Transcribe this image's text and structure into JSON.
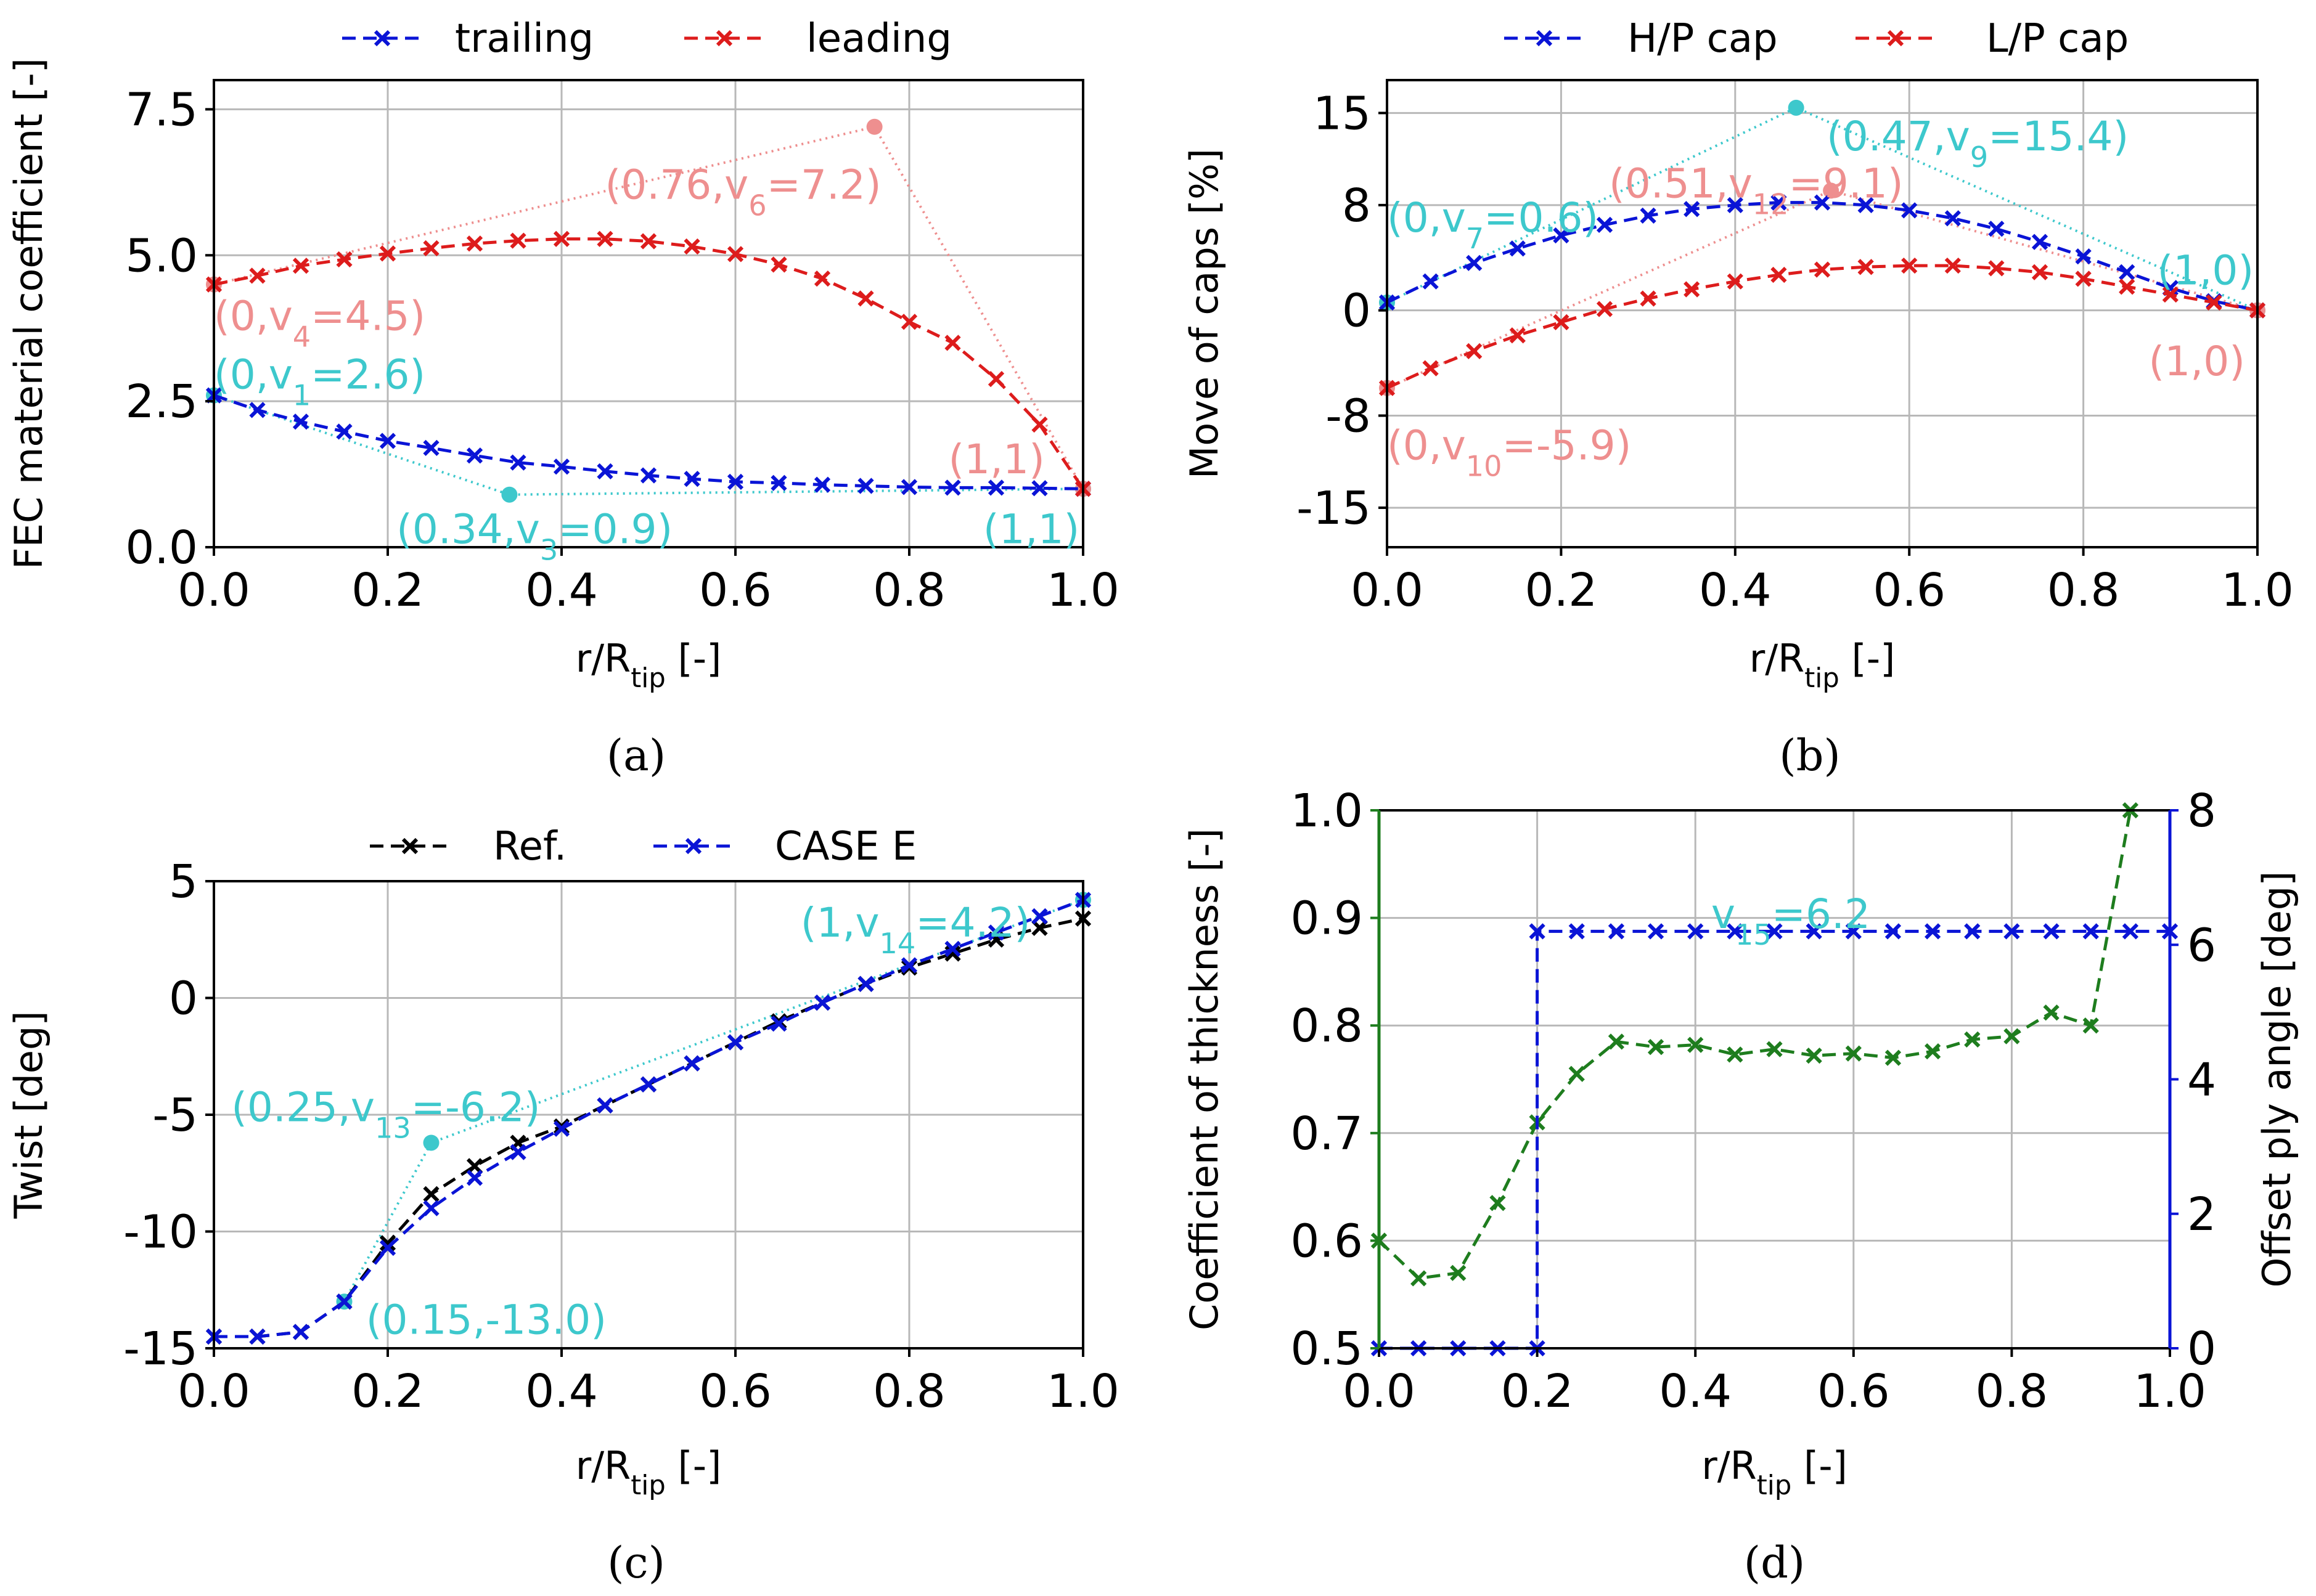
{
  "colors": {
    "blue": "#0a14d6",
    "red": "#dd1c1c",
    "cyan": "#3dc8cc",
    "pink": "#ee8f8f",
    "black": "#000000",
    "green": "#1e7d1e"
  },
  "chart_data": [
    {
      "panel": "(a)",
      "type": "line",
      "xlabel": "r/R",
      "xlabel_sub": "tip",
      "xlabel_unit": " [-]",
      "ylabel": "FEC material coefficient [-]",
      "xlim": [
        0,
        1
      ],
      "ylim": [
        0,
        8
      ],
      "xticks": [
        0.0,
        0.2,
        0.4,
        0.6,
        0.8,
        1.0
      ],
      "xtick_labels": [
        "0.0",
        "0.2",
        "0.4",
        "0.6",
        "0.8",
        "1.0"
      ],
      "yticks": [
        0.0,
        2.5,
        5.0,
        7.5
      ],
      "ytick_labels": [
        "0.0",
        "2.5",
        "5.0",
        "7.5"
      ],
      "legend": "top",
      "series": [
        {
          "name": "trailing",
          "color": "blue",
          "x": [
            0,
            0.05,
            0.1,
            0.15,
            0.2,
            0.25,
            0.3,
            0.35,
            0.4,
            0.45,
            0.5,
            0.55,
            0.6,
            0.65,
            0.7,
            0.75,
            0.8,
            0.85,
            0.9,
            0.95,
            1.0
          ],
          "y": [
            2.6,
            2.35,
            2.15,
            1.98,
            1.82,
            1.7,
            1.57,
            1.45,
            1.38,
            1.3,
            1.23,
            1.17,
            1.12,
            1.1,
            1.07,
            1.05,
            1.03,
            1.02,
            1.02,
            1.01,
            1.0
          ]
        },
        {
          "name": "leading",
          "color": "red",
          "x": [
            0,
            0.05,
            0.1,
            0.15,
            0.2,
            0.25,
            0.3,
            0.35,
            0.4,
            0.45,
            0.5,
            0.55,
            0.6,
            0.65,
            0.7,
            0.75,
            0.8,
            0.85,
            0.9,
            0.95,
            1.0
          ],
          "y": [
            4.5,
            4.65,
            4.82,
            4.93,
            5.03,
            5.12,
            5.2,
            5.25,
            5.28,
            5.28,
            5.24,
            5.15,
            5.02,
            4.84,
            4.6,
            4.26,
            3.86,
            3.5,
            2.88,
            2.1,
            1.0
          ]
        }
      ],
      "control_polygons": [
        {
          "color": "cyan",
          "points": [
            [
              0,
              2.6
            ],
            [
              0.34,
              0.9
            ],
            [
              1,
              1
            ]
          ]
        },
        {
          "color": "pink",
          "points": [
            [
              0,
              4.5
            ],
            [
              0.76,
              7.2
            ],
            [
              1,
              1
            ]
          ]
        }
      ],
      "annotations": [
        {
          "text": "(0.76,v6=7.2)",
          "lead": "(0.76,v",
          "sub": "6",
          "tail": "=7.2)",
          "color": "pink",
          "x": 0.45,
          "y": 6.2
        },
        {
          "text": "(0,v4=4.5)",
          "lead": "(0,v",
          "sub": "4",
          "tail": "=4.5)",
          "color": "pink",
          "x": 0.0,
          "y": 3.95
        },
        {
          "text": "(0,v1=2.6)",
          "lead": "(0,v",
          "sub": "1",
          "tail": "=2.6)",
          "color": "cyan",
          "x": 0.0,
          "y": 2.95
        },
        {
          "text": "(1,1)",
          "lead": "(1,1)",
          "sub": "",
          "tail": "",
          "color": "pink",
          "x": 0.845,
          "y": 1.5
        },
        {
          "text": "(0.34,v3=0.9)",
          "lead": "(0.34,v",
          "sub": "3",
          "tail": "=0.9)",
          "color": "cyan",
          "x": 0.21,
          "y": 0.3
        },
        {
          "text": "(1,1)",
          "lead": "(1,1)",
          "sub": "",
          "tail": "",
          "color": "cyan",
          "x": 0.885,
          "y": 0.3
        }
      ]
    },
    {
      "panel": "(b)",
      "type": "line",
      "xlabel": "r/R",
      "xlabel_sub": "tip",
      "xlabel_unit": " [-]",
      "ylabel": "Move of caps [%]",
      "xlim": [
        0,
        1
      ],
      "ylim": [
        -18,
        17.5
      ],
      "xticks": [
        0.0,
        0.2,
        0.4,
        0.6,
        0.8,
        1.0
      ],
      "xtick_labels": [
        "0.0",
        "0.2",
        "0.4",
        "0.6",
        "0.8",
        "1.0"
      ],
      "yticks": [
        15,
        8,
        0,
        -8,
        -15
      ],
      "ytick_labels": [
        "15",
        "8",
        "0",
        "-8",
        "-15"
      ],
      "legend": "top",
      "series": [
        {
          "name": "H/P cap",
          "color": "blue",
          "x": [
            0,
            0.05,
            0.1,
            0.15,
            0.2,
            0.25,
            0.3,
            0.35,
            0.4,
            0.45,
            0.5,
            0.55,
            0.6,
            0.65,
            0.7,
            0.75,
            0.8,
            0.85,
            0.9,
            0.95,
            1.0
          ],
          "y": [
            0.6,
            2.2,
            3.6,
            4.7,
            5.7,
            6.5,
            7.2,
            7.7,
            8.0,
            8.2,
            8.2,
            8.0,
            7.6,
            7.0,
            6.2,
            5.2,
            4.1,
            2.9,
            1.7,
            0.7,
            0.0
          ]
        },
        {
          "name": "L/P cap",
          "color": "red",
          "x": [
            0,
            0.05,
            0.1,
            0.15,
            0.2,
            0.25,
            0.3,
            0.35,
            0.4,
            0.45,
            0.5,
            0.55,
            0.6,
            0.65,
            0.7,
            0.75,
            0.8,
            0.85,
            0.9,
            0.95,
            1.0
          ],
          "y": [
            -5.9,
            -4.4,
            -3.1,
            -1.9,
            -0.9,
            0.1,
            0.9,
            1.6,
            2.2,
            2.7,
            3.1,
            3.3,
            3.4,
            3.4,
            3.2,
            2.9,
            2.4,
            1.8,
            1.2,
            0.6,
            0.0
          ]
        }
      ],
      "control_polygons": [
        {
          "color": "cyan",
          "points": [
            [
              0,
              0.6
            ],
            [
              0.47,
              15.4
            ],
            [
              1,
              0
            ]
          ]
        },
        {
          "color": "pink",
          "points": [
            [
              0,
              -5.9
            ],
            [
              0.51,
              9.1
            ],
            [
              1,
              0
            ]
          ]
        }
      ],
      "annotations": [
        {
          "text": "(0.47,v9=15.4)",
          "lead": "(0.47,v",
          "sub": "9",
          "tail": "=15.4)",
          "color": "cyan",
          "x": 0.505,
          "y": 13.2
        },
        {
          "text": "(0.51,v12=9.1)",
          "lead": "(0.51,v",
          "sub": "12",
          "tail": "=9.1)",
          "color": "pink",
          "x": 0.255,
          "y": 9.6
        },
        {
          "text": "(0,v7=0.6)",
          "lead": "(0,v",
          "sub": "7",
          "tail": "=0.6)",
          "color": "cyan",
          "x": 0.0,
          "y": 7.0
        },
        {
          "text": "(1,0)",
          "lead": "(1,0)",
          "sub": "",
          "tail": "",
          "color": "cyan",
          "x": 0.885,
          "y": 3.0
        },
        {
          "text": "(1,0)",
          "lead": "(1,0)",
          "sub": "",
          "tail": "",
          "color": "pink",
          "x": 0.875,
          "y": -3.9
        },
        {
          "text": "(0,v10=-5.9)",
          "lead": "(0,v",
          "sub": "10",
          "tail": "=-5.9)",
          "color": "pink",
          "x": 0.0,
          "y": -10.3
        }
      ]
    },
    {
      "panel": "(c)",
      "type": "line",
      "xlabel": "r/R",
      "xlabel_sub": "tip",
      "xlabel_unit": " [-]",
      "ylabel": "Twist [deg]",
      "xlim": [
        0,
        1
      ],
      "ylim": [
        -15,
        5
      ],
      "xticks": [
        0.0,
        0.2,
        0.4,
        0.6,
        0.8,
        1.0
      ],
      "xtick_labels": [
        "0.0",
        "0.2",
        "0.4",
        "0.6",
        "0.8",
        "1.0"
      ],
      "yticks": [
        5,
        0,
        -5,
        -10,
        -15
      ],
      "ytick_labels": [
        "5",
        "0",
        "-5",
        "-10",
        "-15"
      ],
      "legend": "top",
      "series": [
        {
          "name": "Ref.",
          "color": "black",
          "x": [
            0,
            0.05,
            0.1,
            0.15,
            0.2,
            0.25,
            0.3,
            0.35,
            0.4,
            0.45,
            0.5,
            0.55,
            0.6,
            0.65,
            0.7,
            0.75,
            0.8,
            0.85,
            0.9,
            0.95,
            1.0
          ],
          "y": [
            -14.5,
            -14.5,
            -14.3,
            -13.0,
            -10.5,
            -8.4,
            -7.2,
            -6.2,
            -5.5,
            -4.6,
            -3.7,
            -2.8,
            -1.9,
            -1.0,
            -0.2,
            0.6,
            1.3,
            1.9,
            2.5,
            3.0,
            3.4
          ]
        },
        {
          "name": "CASE E",
          "color": "blue",
          "x": [
            0,
            0.05,
            0.1,
            0.15,
            0.2,
            0.25,
            0.3,
            0.35,
            0.4,
            0.45,
            0.5,
            0.55,
            0.6,
            0.65,
            0.7,
            0.75,
            0.8,
            0.85,
            0.9,
            0.95,
            1.0
          ],
          "y": [
            -14.5,
            -14.5,
            -14.3,
            -13.0,
            -10.7,
            -9.0,
            -7.7,
            -6.6,
            -5.6,
            -4.6,
            -3.7,
            -2.8,
            -1.9,
            -1.1,
            -0.2,
            0.6,
            1.4,
            2.1,
            2.8,
            3.5,
            4.2
          ]
        }
      ],
      "control_polygons": [
        {
          "color": "cyan",
          "points": [
            [
              0.15,
              -13.0
            ],
            [
              0.25,
              -6.2
            ],
            [
              1,
              4.2
            ]
          ]
        }
      ],
      "annotations": [
        {
          "text": "(1,v14=4.2)",
          "lead": "(1,v",
          "sub": "14",
          "tail": "=4.2)",
          "color": "cyan",
          "x": 0.675,
          "y": 3.2
        },
        {
          "text": "(0.25,v13=-6.2)",
          "lead": "(0.25,v",
          "sub": "13",
          "tail": "=-6.2)",
          "color": "cyan",
          "x": 0.02,
          "y": -4.7
        },
        {
          "text": "(0.15,-13.0)",
          "lead": "(0.15,-13.0)",
          "sub": "",
          "tail": "",
          "color": "cyan",
          "x": 0.175,
          "y": -13.8
        }
      ]
    },
    {
      "panel": "(d)",
      "type": "line",
      "xlabel": "r/R",
      "xlabel_sub": "tip",
      "xlabel_unit": " [-]",
      "ylabel": "Coefficient of thickness [-]",
      "ylabel_right": "Offset ply angle [deg]",
      "xlim": [
        0,
        1
      ],
      "ylim": [
        0.5,
        1.0
      ],
      "ylim_right": [
        0,
        8
      ],
      "xticks": [
        0.0,
        0.2,
        0.4,
        0.6,
        0.8,
        1.0
      ],
      "xtick_labels": [
        "0.0",
        "0.2",
        "0.4",
        "0.6",
        "0.8",
        "1.0"
      ],
      "yticks": [
        0.5,
        0.6,
        0.7,
        0.8,
        0.9,
        1.0
      ],
      "ytick_labels": [
        "0.5",
        "0.6",
        "0.7",
        "0.8",
        "0.9",
        "1.0"
      ],
      "yticks_right": [
        0,
        2,
        4,
        6,
        8
      ],
      "ytick_labels_right": [
        "0",
        "2",
        "4",
        "6",
        "8"
      ],
      "series": [
        {
          "axis": "left",
          "color": "green",
          "x": [
            0,
            0.05,
            0.1,
            0.15,
            0.2,
            0.25,
            0.3,
            0.35,
            0.4,
            0.45,
            0.5,
            0.55,
            0.6,
            0.65,
            0.7,
            0.75,
            0.8,
            0.85,
            0.9,
            0.95
          ],
          "y": [
            0.6,
            0.565,
            0.57,
            0.635,
            0.71,
            0.755,
            0.785,
            0.78,
            0.782,
            0.773,
            0.778,
            0.772,
            0.774,
            0.77,
            0.776,
            0.787,
            0.79,
            0.812,
            0.8,
            1.0
          ]
        },
        {
          "axis": "right",
          "color": "blue",
          "x": [
            0,
            0.05,
            0.1,
            0.15,
            0.2,
            0.2,
            0.25,
            0.3,
            0.35,
            0.4,
            0.45,
            0.5,
            0.55,
            0.6,
            0.65,
            0.7,
            0.75,
            0.8,
            0.85,
            0.9,
            0.95,
            1.0
          ],
          "y": [
            0,
            0,
            0,
            0,
            0,
            6.2,
            6.2,
            6.2,
            6.2,
            6.2,
            6.2,
            6.2,
            6.2,
            6.2,
            6.2,
            6.2,
            6.2,
            6.2,
            6.2,
            6.2,
            6.2,
            6.2
          ]
        }
      ],
      "annotations": [
        {
          "text": "v15=6.2",
          "lead": "v",
          "sub": "15",
          "tail": "=6.2",
          "color": "cyan",
          "x": 0.42,
          "y_right": 6.45
        }
      ]
    }
  ]
}
